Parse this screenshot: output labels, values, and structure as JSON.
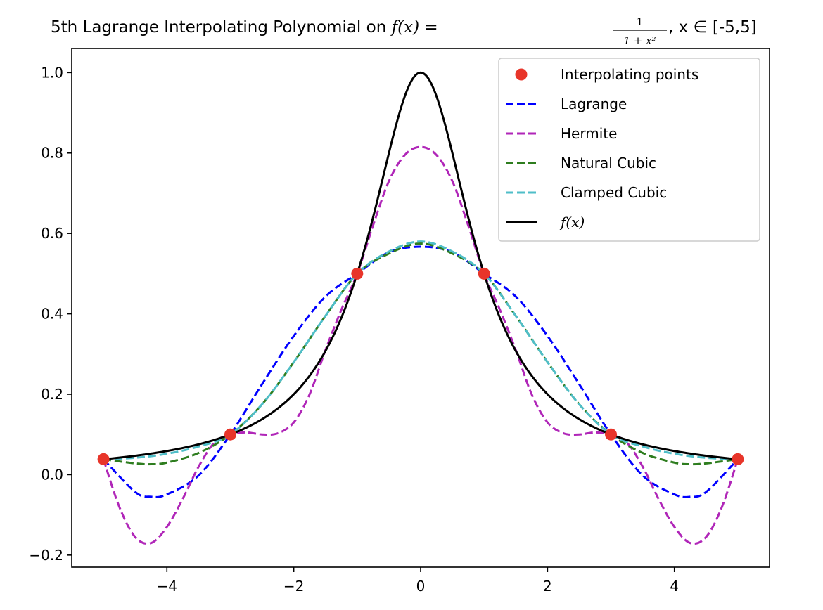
{
  "chart_data": {
    "type": "line",
    "title": {
      "prefix": "5th Lagrange Interpolating Polynomial on ",
      "func_lhs": "f(x) =",
      "frac_num": "1",
      "frac_den": "1 + x²",
      "suffix": ", x ∈ [-5,5]"
    },
    "xlabel": "",
    "ylabel": "",
    "xlim": [
      -5.5,
      5.5
    ],
    "ylim": [
      -0.23,
      1.06
    ],
    "x_ticks": [
      -4,
      -2,
      0,
      2,
      4
    ],
    "x_tick_labels": [
      "−4",
      "−2",
      "0",
      "2",
      "4"
    ],
    "y_ticks": [
      -0.2,
      0.0,
      0.2,
      0.4,
      0.6,
      0.8,
      1.0
    ],
    "y_tick_labels": [
      "−0.2",
      "0.0",
      "0.2",
      "0.4",
      "0.6",
      "0.8",
      "1.0"
    ],
    "grid": false,
    "legend_position": "top-right",
    "interpolating_points": {
      "name": "Interpolating points",
      "color": "#e8352a",
      "x": [
        -5,
        -3,
        -1,
        1,
        3,
        5
      ],
      "y": [
        0.0385,
        0.1,
        0.5,
        0.5,
        0.1,
        0.0385
      ]
    },
    "series": [
      {
        "name": "Lagrange",
        "color": "#0000ff",
        "style": "dashed",
        "x": [
          -5,
          -4.5,
          -4.25,
          -4,
          -3.5,
          -3,
          -2.5,
          -2,
          -1.5,
          -1,
          -0.5,
          0,
          0.5,
          1,
          1.5,
          2,
          2.5,
          3,
          3.5,
          4,
          4.25,
          4.5,
          5
        ],
        "y": [
          0.0385,
          -0.043,
          -0.055,
          -0.049,
          -0.002,
          0.1,
          0.225,
          0.345,
          0.443,
          0.5,
          0.553,
          0.567,
          0.553,
          0.5,
          0.443,
          0.345,
          0.225,
          0.1,
          -0.002,
          -0.049,
          -0.055,
          -0.043,
          0.0385
        ]
      },
      {
        "name": "Hermite",
        "color": "#b026b8",
        "style": "dashed",
        "x": [
          -5,
          -4.75,
          -4.5,
          -4.25,
          -4,
          -3.75,
          -3.5,
          -3.25,
          -3,
          -2.75,
          -2.5,
          -2.25,
          -2,
          -1.75,
          -1.5,
          -1.25,
          -1,
          -0.75,
          -0.5,
          -0.25,
          0,
          0.25,
          0.5,
          0.75,
          1,
          1.25,
          1.5,
          1.75,
          2,
          2.25,
          2.5,
          2.75,
          3,
          3.25,
          3.5,
          3.75,
          4,
          4.25,
          4.5,
          4.75,
          5
        ],
        "y": [
          0.0385,
          -0.08,
          -0.155,
          -0.17,
          -0.13,
          -0.06,
          0.02,
          0.08,
          0.1,
          0.105,
          0.1,
          0.103,
          0.13,
          0.2,
          0.31,
          0.41,
          0.5,
          0.62,
          0.73,
          0.795,
          0.815,
          0.795,
          0.73,
          0.62,
          0.5,
          0.41,
          0.31,
          0.2,
          0.13,
          0.103,
          0.1,
          0.105,
          0.1,
          0.08,
          0.02,
          -0.06,
          -0.13,
          -0.17,
          -0.155,
          -0.08,
          0.0385
        ]
      },
      {
        "name": "Natural Cubic",
        "color": "#2e7d1f",
        "style": "dashed",
        "x": [
          -5,
          -4.5,
          -4.25,
          -4,
          -3.5,
          -3,
          -2.5,
          -2,
          -1.5,
          -1,
          -0.5,
          0,
          0.5,
          1,
          1.5,
          2,
          2.5,
          3,
          3.5,
          4,
          4.25,
          4.5,
          5
        ],
        "y": [
          0.0385,
          0.028,
          0.026,
          0.03,
          0.054,
          0.1,
          0.175,
          0.28,
          0.395,
          0.5,
          0.55,
          0.575,
          0.55,
          0.5,
          0.395,
          0.28,
          0.175,
          0.1,
          0.054,
          0.03,
          0.026,
          0.028,
          0.0385
        ]
      },
      {
        "name": "Clamped Cubic",
        "color": "#4fbec8",
        "style": "dashed",
        "x": [
          -5,
          -4.5,
          -4,
          -3.5,
          -3,
          -2.5,
          -2,
          -1.5,
          -1,
          -0.5,
          0,
          0.5,
          1,
          1.5,
          2,
          2.5,
          3,
          3.5,
          4,
          4.5,
          5
        ],
        "y": [
          0.0385,
          0.042,
          0.052,
          0.07,
          0.1,
          0.175,
          0.28,
          0.395,
          0.5,
          0.555,
          0.58,
          0.555,
          0.5,
          0.395,
          0.28,
          0.175,
          0.1,
          0.07,
          0.052,
          0.042,
          0.0385
        ]
      }
    ],
    "function_curve": {
      "name": "f(x)",
      "color": "#000000",
      "style": "solid",
      "x_range": [
        -5,
        5
      ]
    }
  }
}
